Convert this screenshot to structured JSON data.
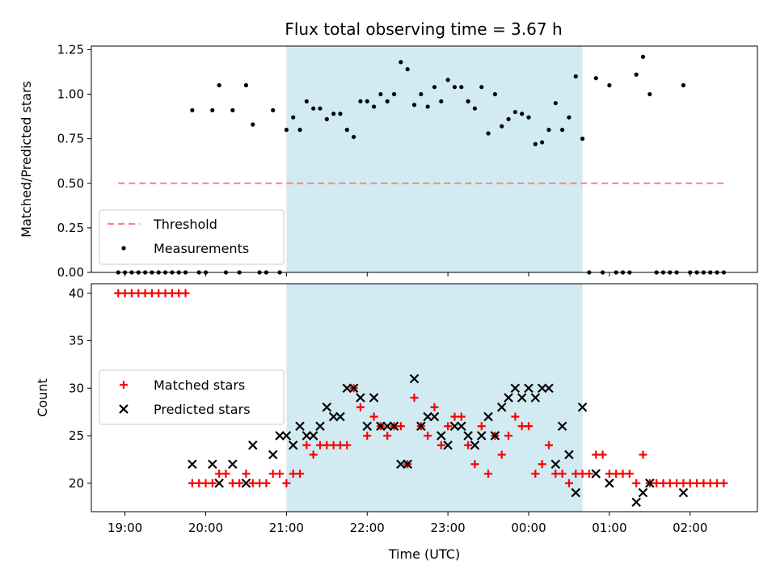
{
  "title": "Flux total observing time = 3.67 h",
  "chart_data": [
    {
      "type": "scatter",
      "ylabel": "Matched/Predicted stars",
      "ylim": [
        0,
        1.27
      ],
      "yticks": [
        "0.00",
        "0.25",
        "0.50",
        "0.75",
        "1.00",
        "1.25"
      ],
      "ytick_values": [
        0,
        0.25,
        0.5,
        0.75,
        1.0,
        1.25
      ],
      "threshold": {
        "name": "Threshold",
        "value": 0.5,
        "x_start": "18:55",
        "x_end": "02:25",
        "color": "#ff7f7f"
      },
      "highlight": {
        "start": "21:00",
        "end": "00:40",
        "color": "#add8e6"
      },
      "legend": {
        "loc": "lower-left",
        "entries": [
          "Threshold",
          "Measurements"
        ]
      },
      "series": [
        {
          "name": "Measurements",
          "marker": "dot",
          "color": "#000000",
          "points": [
            [
              "18:55",
              0
            ],
            [
              "19:00",
              0
            ],
            [
              "19:05",
              0
            ],
            [
              "19:10",
              0
            ],
            [
              "19:15",
              0
            ],
            [
              "19:20",
              0
            ],
            [
              "19:25",
              0
            ],
            [
              "19:30",
              0
            ],
            [
              "19:35",
              0
            ],
            [
              "19:40",
              0
            ],
            [
              "19:45",
              0
            ],
            [
              "19:50",
              0.91
            ],
            [
              "19:55",
              0
            ],
            [
              "20:00",
              0
            ],
            [
              "20:05",
              0.91
            ],
            [
              "20:10",
              1.05
            ],
            [
              "20:15",
              0
            ],
            [
              "20:20",
              0.91
            ],
            [
              "20:25",
              0
            ],
            [
              "20:30",
              1.05
            ],
            [
              "20:35",
              0.83
            ],
            [
              "20:40",
              0
            ],
            [
              "20:45",
              0
            ],
            [
              "20:50",
              0.91
            ],
            [
              "20:55",
              0
            ],
            [
              "21:00",
              0.8
            ],
            [
              "21:05",
              0.87
            ],
            [
              "21:10",
              0.8
            ],
            [
              "21:15",
              0.96
            ],
            [
              "21:20",
              0.92
            ],
            [
              "21:25",
              0.92
            ],
            [
              "21:30",
              0.86
            ],
            [
              "21:35",
              0.89
            ],
            [
              "21:40",
              0.89
            ],
            [
              "21:45",
              0.8
            ],
            [
              "21:50",
              0.76
            ],
            [
              "21:55",
              0.96
            ],
            [
              "22:00",
              0.96
            ],
            [
              "22:05",
              0.93
            ],
            [
              "22:10",
              1.0
            ],
            [
              "22:15",
              0.96
            ],
            [
              "22:20",
              1.0
            ],
            [
              "22:25",
              1.18
            ],
            [
              "22:30",
              1.14
            ],
            [
              "22:35",
              0.94
            ],
            [
              "22:40",
              1.0
            ],
            [
              "22:45",
              0.93
            ],
            [
              "22:50",
              1.04
            ],
            [
              "22:55",
              0.96
            ],
            [
              "23:00",
              1.08
            ],
            [
              "23:05",
              1.04
            ],
            [
              "23:10",
              1.04
            ],
            [
              "23:15",
              0.96
            ],
            [
              "23:20",
              0.92
            ],
            [
              "23:25",
              1.04
            ],
            [
              "23:30",
              0.78
            ],
            [
              "23:35",
              1.0
            ],
            [
              "23:40",
              0.82
            ],
            [
              "23:45",
              0.86
            ],
            [
              "23:50",
              0.9
            ],
            [
              "23:55",
              0.89
            ],
            [
              "00:00",
              0.87
            ],
            [
              "00:05",
              0.72
            ],
            [
              "00:10",
              0.73
            ],
            [
              "00:15",
              0.8
            ],
            [
              "00:20",
              0.95
            ],
            [
              "00:25",
              0.8
            ],
            [
              "00:30",
              0.87
            ],
            [
              "00:35",
              1.1
            ],
            [
              "00:40",
              0.75
            ],
            [
              "00:45",
              0
            ],
            [
              "00:50",
              1.09
            ],
            [
              "00:55",
              0
            ],
            [
              "01:00",
              1.05
            ],
            [
              "01:05",
              0
            ],
            [
              "01:10",
              0
            ],
            [
              "01:15",
              0
            ],
            [
              "01:20",
              1.11
            ],
            [
              "01:25",
              1.21
            ],
            [
              "01:30",
              1.0
            ],
            [
              "01:35",
              0
            ],
            [
              "01:40",
              0
            ],
            [
              "01:45",
              0
            ],
            [
              "01:50",
              0
            ],
            [
              "01:55",
              1.05
            ],
            [
              "02:00",
              0
            ],
            [
              "02:05",
              0
            ],
            [
              "02:10",
              0
            ],
            [
              "02:15",
              0
            ],
            [
              "02:20",
              0
            ],
            [
              "02:25",
              0
            ]
          ]
        }
      ]
    },
    {
      "type": "scatter",
      "xlabel": "Time (UTC)",
      "ylabel": "Count",
      "ylim": [
        17,
        41
      ],
      "yticks": [
        "20",
        "25",
        "30",
        "35",
        "40"
      ],
      "ytick_values": [
        20,
        25,
        30,
        35,
        40
      ],
      "xlim": [
        "18:35",
        "02:50"
      ],
      "xticks": [
        "19:00",
        "20:00",
        "21:00",
        "22:00",
        "23:00",
        "00:00",
        "01:00",
        "02:00"
      ],
      "highlight": {
        "start": "21:00",
        "end": "00:40",
        "color": "#add8e6"
      },
      "legend": {
        "loc": "center-left",
        "entries": [
          "Matched stars",
          "Predicted stars"
        ]
      },
      "series": [
        {
          "name": "Matched stars",
          "marker": "plus",
          "color": "#ff0000",
          "points": [
            [
              "18:55",
              40
            ],
            [
              "19:00",
              40
            ],
            [
              "19:05",
              40
            ],
            [
              "19:10",
              40
            ],
            [
              "19:15",
              40
            ],
            [
              "19:20",
              40
            ],
            [
              "19:25",
              40
            ],
            [
              "19:30",
              40
            ],
            [
              "19:35",
              40
            ],
            [
              "19:40",
              40
            ],
            [
              "19:45",
              40
            ],
            [
              "19:50",
              20
            ],
            [
              "19:55",
              20
            ],
            [
              "20:00",
              20
            ],
            [
              "20:05",
              20
            ],
            [
              "20:10",
              21
            ],
            [
              "20:15",
              21
            ],
            [
              "20:20",
              20
            ],
            [
              "20:25",
              20
            ],
            [
              "20:30",
              21
            ],
            [
              "20:35",
              20
            ],
            [
              "20:40",
              20
            ],
            [
              "20:45",
              20
            ],
            [
              "20:50",
              21
            ],
            [
              "20:55",
              21
            ],
            [
              "21:00",
              20
            ],
            [
              "21:05",
              21
            ],
            [
              "21:10",
              21
            ],
            [
              "21:15",
              24
            ],
            [
              "21:20",
              23
            ],
            [
              "21:25",
              24
            ],
            [
              "21:30",
              24
            ],
            [
              "21:35",
              24
            ],
            [
              "21:40",
              24
            ],
            [
              "21:45",
              24
            ],
            [
              "21:50",
              30
            ],
            [
              "21:55",
              28
            ],
            [
              "22:00",
              25
            ],
            [
              "22:05",
              27
            ],
            [
              "22:10",
              26
            ],
            [
              "22:15",
              25
            ],
            [
              "22:20",
              26
            ],
            [
              "22:25",
              26
            ],
            [
              "22:30",
              22
            ],
            [
              "22:35",
              29
            ],
            [
              "22:40",
              26
            ],
            [
              "22:45",
              25
            ],
            [
              "22:50",
              28
            ],
            [
              "22:55",
              24
            ],
            [
              "23:00",
              26
            ],
            [
              "23:05",
              27
            ],
            [
              "23:10",
              27
            ],
            [
              "23:15",
              24
            ],
            [
              "23:20",
              22
            ],
            [
              "23:25",
              26
            ],
            [
              "23:30",
              21
            ],
            [
              "23:35",
              25
            ],
            [
              "23:40",
              23
            ],
            [
              "23:45",
              25
            ],
            [
              "23:50",
              27
            ],
            [
              "23:55",
              26
            ],
            [
              "00:00",
              26
            ],
            [
              "00:05",
              21
            ],
            [
              "00:10",
              22
            ],
            [
              "00:15",
              24
            ],
            [
              "00:20",
              21
            ],
            [
              "00:25",
              21
            ],
            [
              "00:30",
              20
            ],
            [
              "00:35",
              21
            ],
            [
              "00:40",
              21
            ],
            [
              "00:45",
              21
            ],
            [
              "00:50",
              23
            ],
            [
              "00:55",
              23
            ],
            [
              "01:00",
              21
            ],
            [
              "01:05",
              21
            ],
            [
              "01:10",
              21
            ],
            [
              "01:15",
              21
            ],
            [
              "01:20",
              20
            ],
            [
              "01:25",
              23
            ],
            [
              "01:30",
              20
            ],
            [
              "01:35",
              20
            ],
            [
              "01:40",
              20
            ],
            [
              "01:45",
              20
            ],
            [
              "01:50",
              20
            ],
            [
              "01:55",
              20
            ],
            [
              "02:00",
              20
            ],
            [
              "02:05",
              20
            ],
            [
              "02:10",
              20
            ],
            [
              "02:15",
              20
            ],
            [
              "02:20",
              20
            ],
            [
              "02:25",
              20
            ]
          ]
        },
        {
          "name": "Predicted stars",
          "marker": "x",
          "color": "#000000",
          "points": [
            [
              "19:50",
              22
            ],
            [
              "20:05",
              22
            ],
            [
              "20:10",
              20
            ],
            [
              "20:20",
              22
            ],
            [
              "20:30",
              20
            ],
            [
              "20:35",
              24
            ],
            [
              "20:50",
              23
            ],
            [
              "20:55",
              25
            ],
            [
              "21:00",
              25
            ],
            [
              "21:05",
              24
            ],
            [
              "21:10",
              26
            ],
            [
              "21:15",
              25
            ],
            [
              "21:20",
              25
            ],
            [
              "21:25",
              26
            ],
            [
              "21:30",
              28
            ],
            [
              "21:35",
              27
            ],
            [
              "21:40",
              27
            ],
            [
              "21:45",
              30
            ],
            [
              "21:50",
              30
            ],
            [
              "21:55",
              29
            ],
            [
              "22:00",
              26
            ],
            [
              "22:05",
              29
            ],
            [
              "22:10",
              26
            ],
            [
              "22:15",
              26
            ],
            [
              "22:20",
              26
            ],
            [
              "22:25",
              22
            ],
            [
              "22:30",
              22
            ],
            [
              "22:35",
              31
            ],
            [
              "22:40",
              26
            ],
            [
              "22:45",
              27
            ],
            [
              "22:50",
              27
            ],
            [
              "22:55",
              25
            ],
            [
              "23:00",
              24
            ],
            [
              "23:05",
              26
            ],
            [
              "23:10",
              26
            ],
            [
              "23:15",
              25
            ],
            [
              "23:20",
              24
            ],
            [
              "23:25",
              25
            ],
            [
              "23:30",
              27
            ],
            [
              "23:35",
              25
            ],
            [
              "23:40",
              28
            ],
            [
              "23:45",
              29
            ],
            [
              "23:50",
              30
            ],
            [
              "23:55",
              29
            ],
            [
              "00:00",
              30
            ],
            [
              "00:05",
              29
            ],
            [
              "00:10",
              30
            ],
            [
              "00:15",
              30
            ],
            [
              "00:20",
              22
            ],
            [
              "00:25",
              26
            ],
            [
              "00:30",
              23
            ],
            [
              "00:35",
              19
            ],
            [
              "00:40",
              28
            ],
            [
              "00:50",
              21
            ],
            [
              "01:00",
              20
            ],
            [
              "01:20",
              18
            ],
            [
              "01:25",
              19
            ],
            [
              "01:30",
              20
            ],
            [
              "01:55",
              19
            ]
          ]
        }
      ]
    }
  ]
}
